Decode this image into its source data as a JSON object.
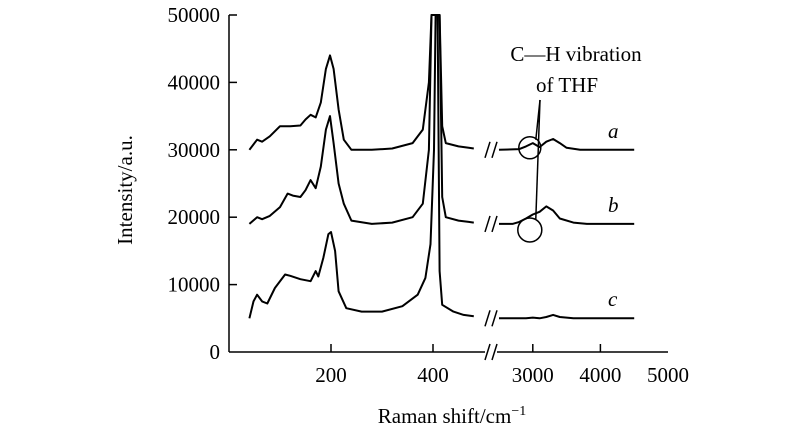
{
  "chart_data": {
    "type": "line",
    "title": "",
    "xlabel": "Raman shift/cm",
    "xlabel_superscript": "−1",
    "ylabel": "Intensity/a.u.",
    "ylim": [
      0,
      50000
    ],
    "y_ticks": [
      "0",
      "10000",
      "20000",
      "30000",
      "40000",
      "50000"
    ],
    "y_tick_values": [
      0,
      10000,
      20000,
      30000,
      40000,
      50000
    ],
    "x_axis_break": true,
    "x_segment_low": {
      "range": [
        0,
        500
      ],
      "ticks": [
        "200",
        "400"
      ],
      "tick_values": [
        200,
        400
      ]
    },
    "x_segment_high": {
      "range": [
        2500,
        5000
      ],
      "ticks": [
        "3000",
        "4000",
        "5000"
      ],
      "tick_values": [
        3000,
        4000,
        5000
      ]
    },
    "annotation": {
      "line1": "C—H vibration",
      "line2": "of THF",
      "marked_shift": 3000
    },
    "series": [
      {
        "name": "a",
        "low": [
          [
            40,
            30000
          ],
          [
            55,
            31500
          ],
          [
            65,
            31200
          ],
          [
            80,
            32000
          ],
          [
            100,
            33500
          ],
          [
            120,
            33500
          ],
          [
            140,
            33600
          ],
          [
            150,
            34500
          ],
          [
            160,
            35200
          ],
          [
            170,
            34800
          ],
          [
            180,
            37000
          ],
          [
            190,
            42000
          ],
          [
            198,
            44000
          ],
          [
            205,
            42000
          ],
          [
            215,
            36000
          ],
          [
            225,
            31500
          ],
          [
            240,
            30000
          ],
          [
            280,
            30000
          ],
          [
            320,
            30200
          ],
          [
            360,
            31000
          ],
          [
            380,
            33000
          ],
          [
            392,
            40000
          ],
          [
            397,
            50000
          ],
          [
            403,
            50000
          ],
          [
            405,
            50000
          ],
          [
            410,
            50000
          ],
          [
            413,
            50000
          ],
          [
            418,
            33500
          ],
          [
            425,
            31000
          ],
          [
            450,
            30500
          ],
          [
            470,
            30300
          ],
          [
            480,
            30200
          ]
        ],
        "high": [
          [
            2500,
            30000
          ],
          [
            2800,
            30100
          ],
          [
            2900,
            30500
          ],
          [
            3000,
            31000
          ],
          [
            3100,
            30400
          ],
          [
            3200,
            31200
          ],
          [
            3300,
            31600
          ],
          [
            3400,
            31000
          ],
          [
            3500,
            30300
          ],
          [
            3700,
            30000
          ],
          [
            4500,
            30000
          ]
        ]
      },
      {
        "name": "b",
        "low": [
          [
            40,
            19000
          ],
          [
            55,
            20000
          ],
          [
            65,
            19700
          ],
          [
            80,
            20200
          ],
          [
            100,
            21500
          ],
          [
            115,
            23500
          ],
          [
            125,
            23200
          ],
          [
            140,
            23000
          ],
          [
            150,
            24000
          ],
          [
            160,
            25500
          ],
          [
            170,
            24300
          ],
          [
            180,
            27500
          ],
          [
            190,
            33000
          ],
          [
            198,
            35000
          ],
          [
            205,
            31000
          ],
          [
            215,
            25000
          ],
          [
            225,
            22000
          ],
          [
            240,
            19500
          ],
          [
            280,
            19000
          ],
          [
            320,
            19200
          ],
          [
            360,
            20000
          ],
          [
            380,
            22000
          ],
          [
            392,
            30000
          ],
          [
            397,
            50000
          ],
          [
            403,
            50000
          ],
          [
            405,
            50000
          ],
          [
            410,
            50000
          ],
          [
            413,
            50000
          ],
          [
            418,
            23000
          ],
          [
            425,
            20000
          ],
          [
            450,
            19500
          ],
          [
            470,
            19300
          ],
          [
            480,
            19200
          ]
        ],
        "high": [
          [
            2500,
            19000
          ],
          [
            2700,
            19000
          ],
          [
            2800,
            19300
          ],
          [
            2900,
            19800
          ],
          [
            3000,
            20400
          ],
          [
            3100,
            20800
          ],
          [
            3200,
            21600
          ],
          [
            3300,
            21000
          ],
          [
            3400,
            19800
          ],
          [
            3600,
            19200
          ],
          [
            3800,
            19000
          ],
          [
            4500,
            19000
          ]
        ]
      },
      {
        "name": "c",
        "low": [
          [
            40,
            5000
          ],
          [
            48,
            7500
          ],
          [
            55,
            8500
          ],
          [
            65,
            7500
          ],
          [
            75,
            7200
          ],
          [
            90,
            9500
          ],
          [
            110,
            11500
          ],
          [
            120,
            11300
          ],
          [
            140,
            10800
          ],
          [
            160,
            10500
          ],
          [
            170,
            12000
          ],
          [
            175,
            11200
          ],
          [
            185,
            14000
          ],
          [
            195,
            17500
          ],
          [
            200,
            17800
          ],
          [
            208,
            15000
          ],
          [
            215,
            9000
          ],
          [
            230,
            6500
          ],
          [
            260,
            6000
          ],
          [
            300,
            6000
          ],
          [
            340,
            6800
          ],
          [
            370,
            8500
          ],
          [
            385,
            11000
          ],
          [
            395,
            16000
          ],
          [
            402,
            30000
          ],
          [
            405,
            50000
          ],
          [
            409,
            50000
          ],
          [
            413,
            12000
          ],
          [
            418,
            7000
          ],
          [
            440,
            6000
          ],
          [
            460,
            5500
          ],
          [
            480,
            5300
          ]
        ],
        "high": [
          [
            2500,
            5000
          ],
          [
            2900,
            5000
          ],
          [
            3000,
            5100
          ],
          [
            3100,
            5000
          ],
          [
            3200,
            5200
          ],
          [
            3300,
            5500
          ],
          [
            3400,
            5200
          ],
          [
            3600,
            5000
          ],
          [
            4500,
            5000
          ]
        ]
      }
    ]
  }
}
